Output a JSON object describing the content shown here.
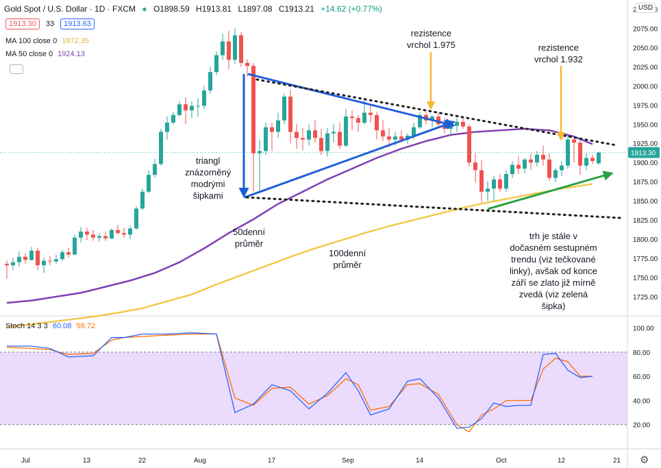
{
  "header": {
    "symbol": "Gold Spot / U.S. Dollar · 1D · FXCM",
    "open": "O1898.59",
    "high": "H1913.81",
    "low": "L1897.08",
    "close": "C1913.21",
    "change": "+14.62 (+0.77%)",
    "bid": "1913.30",
    "spread": "33",
    "ask": "1913.63"
  },
  "indicators": {
    "ma100_label": "MA 100 close 0",
    "ma100_value": "1872.35",
    "ma50_label": "MA 50 close 0",
    "ma50_value": "1924.13",
    "stoch_label": "Stoch 14 3 3",
    "stoch_k": "60.08",
    "stoch_d": "59.72"
  },
  "currency": "USD",
  "price_badge": "1913.30",
  "annotations": {
    "triangle": [
      "triangl",
      "znázorněný",
      "modrými",
      "šipkami"
    ],
    "res1": [
      "rezistence",
      "vrchol 1.975"
    ],
    "res2": [
      "rezistence",
      "vrchol 1.932"
    ],
    "ma50": [
      "50denní",
      "průměr"
    ],
    "ma100": [
      "100denní",
      "průměr"
    ],
    "trend": [
      "trh je stále v",
      "dočasném sestupném",
      "trendu (viz tečkované",
      "linky), avšak od konce",
      "září se zlato již mírně",
      "zvedá (viz zelená",
      "šipka)"
    ]
  },
  "colors": {
    "up": "#26a69a",
    "down": "#ef5350",
    "ma50": "#7e3fb5",
    "ma100": "#f2c94c",
    "blue": "#1f5fd6",
    "green": "#2ea043",
    "orange_arrow": "#f5b82e",
    "stoch_k": "#2962ff",
    "stoch_d": "#ff6d00",
    "stoch_band": "#e6d2fb"
  },
  "chart_data": [
    {
      "type": "candlestick",
      "title": "Gold Spot / U.S. Dollar · 1D · FXCM",
      "ylim": [
        1700,
        2112
      ],
      "yticks": [
        "2100.00",
        "2075.00",
        "2050.00",
        "2025.00",
        "2000.00",
        "1975.00",
        "1950.00",
        "1925.00",
        "1900.00",
        "1875.00",
        "1850.00",
        "1825.00",
        "1800.00",
        "1775.00",
        "1750.00",
        "1725.00"
      ],
      "xticks": [
        "Jul",
        "13",
        "22",
        "Aug",
        "17",
        "Sep",
        "14",
        "Oct",
        "12",
        "21"
      ],
      "candles": [
        [
          1768,
          1772,
          1748,
          1766
        ],
        [
          1766,
          1776,
          1760,
          1770
        ],
        [
          1770,
          1784,
          1764,
          1777
        ],
        [
          1777,
          1782,
          1768,
          1773
        ],
        [
          1773,
          1790,
          1772,
          1785
        ],
        [
          1785,
          1789,
          1760,
          1766
        ],
        [
          1766,
          1776,
          1756,
          1772
        ],
        [
          1772,
          1778,
          1766,
          1771
        ],
        [
          1771,
          1780,
          1768,
          1774
        ],
        [
          1774,
          1786,
          1771,
          1783
        ],
        [
          1783,
          1789,
          1776,
          1780
        ],
        [
          1780,
          1806,
          1779,
          1802
        ],
        [
          1802,
          1816,
          1796,
          1810
        ],
        [
          1810,
          1815,
          1799,
          1806
        ],
        [
          1806,
          1812,
          1798,
          1802
        ],
        [
          1802,
          1808,
          1797,
          1804
        ],
        [
          1804,
          1810,
          1798,
          1801
        ],
        [
          1801,
          1814,
          1800,
          1812
        ],
        [
          1812,
          1819,
          1806,
          1808
        ],
        [
          1808,
          1815,
          1802,
          1806
        ],
        [
          1806,
          1818,
          1800,
          1814
        ],
        [
          1814,
          1843,
          1812,
          1840
        ],
        [
          1840,
          1866,
          1838,
          1862
        ],
        [
          1862,
          1890,
          1860,
          1884
        ],
        [
          1884,
          1905,
          1880,
          1898
        ],
        [
          1898,
          1944,
          1896,
          1940
        ],
        [
          1940,
          1960,
          1930,
          1952
        ],
        [
          1952,
          1966,
          1950,
          1962
        ],
        [
          1962,
          1980,
          1960,
          1976
        ],
        [
          1976,
          1985,
          1950,
          1968
        ],
        [
          1968,
          1980,
          1958,
          1974
        ],
        [
          1974,
          1984,
          1960,
          1974
        ],
        [
          1974,
          2000,
          1970,
          1994
        ],
        [
          1994,
          2025,
          1990,
          2018
        ],
        [
          2018,
          2045,
          2014,
          2040
        ],
        [
          2040,
          2068,
          2034,
          2058
        ],
        [
          2058,
          2072,
          2022,
          2034
        ],
        [
          2034,
          2075,
          2028,
          2066
        ],
        [
          2066,
          2070,
          2025,
          2030
        ],
        [
          2030,
          2035,
          2012,
          2026
        ],
        [
          2026,
          2030,
          1862,
          1912
        ],
        [
          1912,
          1930,
          1860,
          1915
        ],
        [
          1915,
          1952,
          1910,
          1946
        ],
        [
          1946,
          1952,
          1915,
          1940
        ],
        [
          1940,
          1965,
          1932,
          1955
        ],
        [
          1955,
          1990,
          1950,
          1986
        ],
        [
          1986,
          1995,
          1925,
          1940
        ],
        [
          1940,
          1950,
          1918,
          1932
        ],
        [
          1932,
          1945,
          1916,
          1930
        ],
        [
          1930,
          1950,
          1922,
          1942
        ],
        [
          1942,
          1955,
          1926,
          1932
        ],
        [
          1932,
          1944,
          1910,
          1915
        ],
        [
          1915,
          1945,
          1908,
          1938
        ],
        [
          1938,
          1950,
          1926,
          1940
        ],
        [
          1940,
          1952,
          1918,
          1922
        ],
        [
          1922,
          1970,
          1920,
          1960
        ],
        [
          1960,
          1968,
          1942,
          1958
        ],
        [
          1958,
          1962,
          1940,
          1952
        ],
        [
          1952,
          1985,
          1950,
          1965
        ],
        [
          1965,
          1975,
          1952,
          1962
        ],
        [
          1962,
          1966,
          1930,
          1942
        ],
        [
          1942,
          1955,
          1928,
          1934
        ],
        [
          1934,
          1945,
          1920,
          1930
        ],
        [
          1930,
          1940,
          1922,
          1934
        ],
        [
          1934,
          1942,
          1926,
          1930
        ],
        [
          1930,
          1938,
          1924,
          1935
        ],
        [
          1935,
          1952,
          1930,
          1946
        ],
        [
          1946,
          1966,
          1944,
          1962
        ],
        [
          1962,
          1966,
          1950,
          1955
        ],
        [
          1955,
          1962,
          1946,
          1960
        ],
        [
          1960,
          1965,
          1945,
          1950
        ],
        [
          1950,
          1958,
          1938,
          1944
        ],
        [
          1944,
          1952,
          1935,
          1948
        ],
        [
          1948,
          1958,
          1940,
          1953
        ],
        [
          1953,
          1958,
          1944,
          1947
        ],
        [
          1947,
          1950,
          1895,
          1900
        ],
        [
          1900,
          1912,
          1874,
          1890
        ],
        [
          1890,
          1903,
          1848,
          1862
        ],
        [
          1862,
          1876,
          1850,
          1866
        ],
        [
          1866,
          1882,
          1850,
          1878
        ],
        [
          1878,
          1885,
          1862,
          1866
        ],
        [
          1866,
          1890,
          1862,
          1885
        ],
        [
          1885,
          1902,
          1880,
          1897
        ],
        [
          1897,
          1908,
          1885,
          1892
        ],
        [
          1892,
          1906,
          1886,
          1904
        ],
        [
          1904,
          1912,
          1890,
          1900
        ],
        [
          1900,
          1915,
          1895,
          1910
        ],
        [
          1910,
          1922,
          1896,
          1904
        ],
        [
          1904,
          1912,
          1876,
          1880
        ],
        [
          1880,
          1893,
          1874,
          1890
        ],
        [
          1890,
          1902,
          1882,
          1896
        ],
        [
          1896,
          1935,
          1892,
          1930
        ],
        [
          1930,
          1932,
          1900,
          1926
        ],
        [
          1926,
          1930,
          1884,
          1896
        ],
        [
          1896,
          1912,
          1890,
          1906
        ],
        [
          1906,
          1910,
          1898,
          1902
        ],
        [
          1899,
          1914,
          1897,
          1913
        ]
      ],
      "series": [
        {
          "name": "MA 100 close 0",
          "x": [
            0,
            3,
            6,
            10,
            14,
            18,
            22,
            26,
            30,
            34,
            38,
            42,
            46,
            50,
            54,
            58,
            62,
            66,
            70,
            74,
            78,
            82,
            86,
            90,
            95
          ],
          "values": [
            1686,
            1688,
            1691,
            1695,
            1699,
            1704,
            1710,
            1719,
            1728,
            1741,
            1753,
            1765,
            1777,
            1788,
            1798,
            1808,
            1817,
            1825,
            1833,
            1841,
            1848,
            1854,
            1860,
            1866,
            1872
          ]
        },
        {
          "name": "MA 50 close 0",
          "x": [
            0,
            4,
            8,
            12,
            16,
            20,
            24,
            28,
            32,
            36,
            40,
            44,
            48,
            52,
            56,
            60,
            64,
            68,
            72,
            76,
            80,
            84,
            88,
            92,
            95
          ],
          "values": [
            1717,
            1720,
            1725,
            1730,
            1738,
            1746,
            1756,
            1770,
            1788,
            1808,
            1826,
            1846,
            1862,
            1878,
            1892,
            1906,
            1918,
            1928,
            1936,
            1940,
            1942,
            1944,
            1942,
            1934,
            1924
          ]
        }
      ]
    },
    {
      "type": "line",
      "title": "Stoch 14 3 3",
      "ylim": [
        0,
        110
      ],
      "yticks": [
        "100.00",
        "80.00",
        "60.00",
        "40.00",
        "20.00"
      ],
      "band": [
        20,
        80
      ],
      "series": [
        {
          "name": "%K",
          "x": [
            0,
            4,
            7,
            10,
            14,
            17,
            19,
            22,
            26,
            30,
            34,
            37,
            40,
            43,
            46,
            49,
            52,
            55,
            57,
            59,
            62,
            65,
            67,
            70,
            73,
            75,
            77,
            79,
            81,
            83,
            85,
            87,
            89,
            91,
            93,
            95
          ],
          "values": [
            85,
            85,
            83,
            76,
            77,
            92,
            92,
            95,
            95,
            96,
            95,
            30,
            37,
            53,
            48,
            33,
            46,
            63,
            48,
            28,
            33,
            56,
            58,
            42,
            17,
            18,
            25,
            38,
            35,
            36,
            36,
            78,
            79,
            65,
            59,
            60
          ]
        },
        {
          "name": "%D",
          "x": [
            0,
            4,
            7,
            10,
            14,
            17,
            19,
            22,
            26,
            30,
            34,
            37,
            40,
            43,
            46,
            49,
            52,
            55,
            57,
            59,
            62,
            65,
            67,
            70,
            73,
            75,
            77,
            79,
            81,
            83,
            85,
            87,
            89,
            91,
            93,
            95
          ],
          "values": [
            84,
            83,
            82,
            78,
            79,
            90,
            92,
            93,
            94,
            95,
            95,
            42,
            36,
            50,
            51,
            37,
            44,
            58,
            53,
            32,
            35,
            53,
            54,
            45,
            20,
            14,
            28,
            33,
            40,
            40,
            40,
            66,
            75,
            72,
            60,
            60
          ]
        }
      ]
    }
  ]
}
